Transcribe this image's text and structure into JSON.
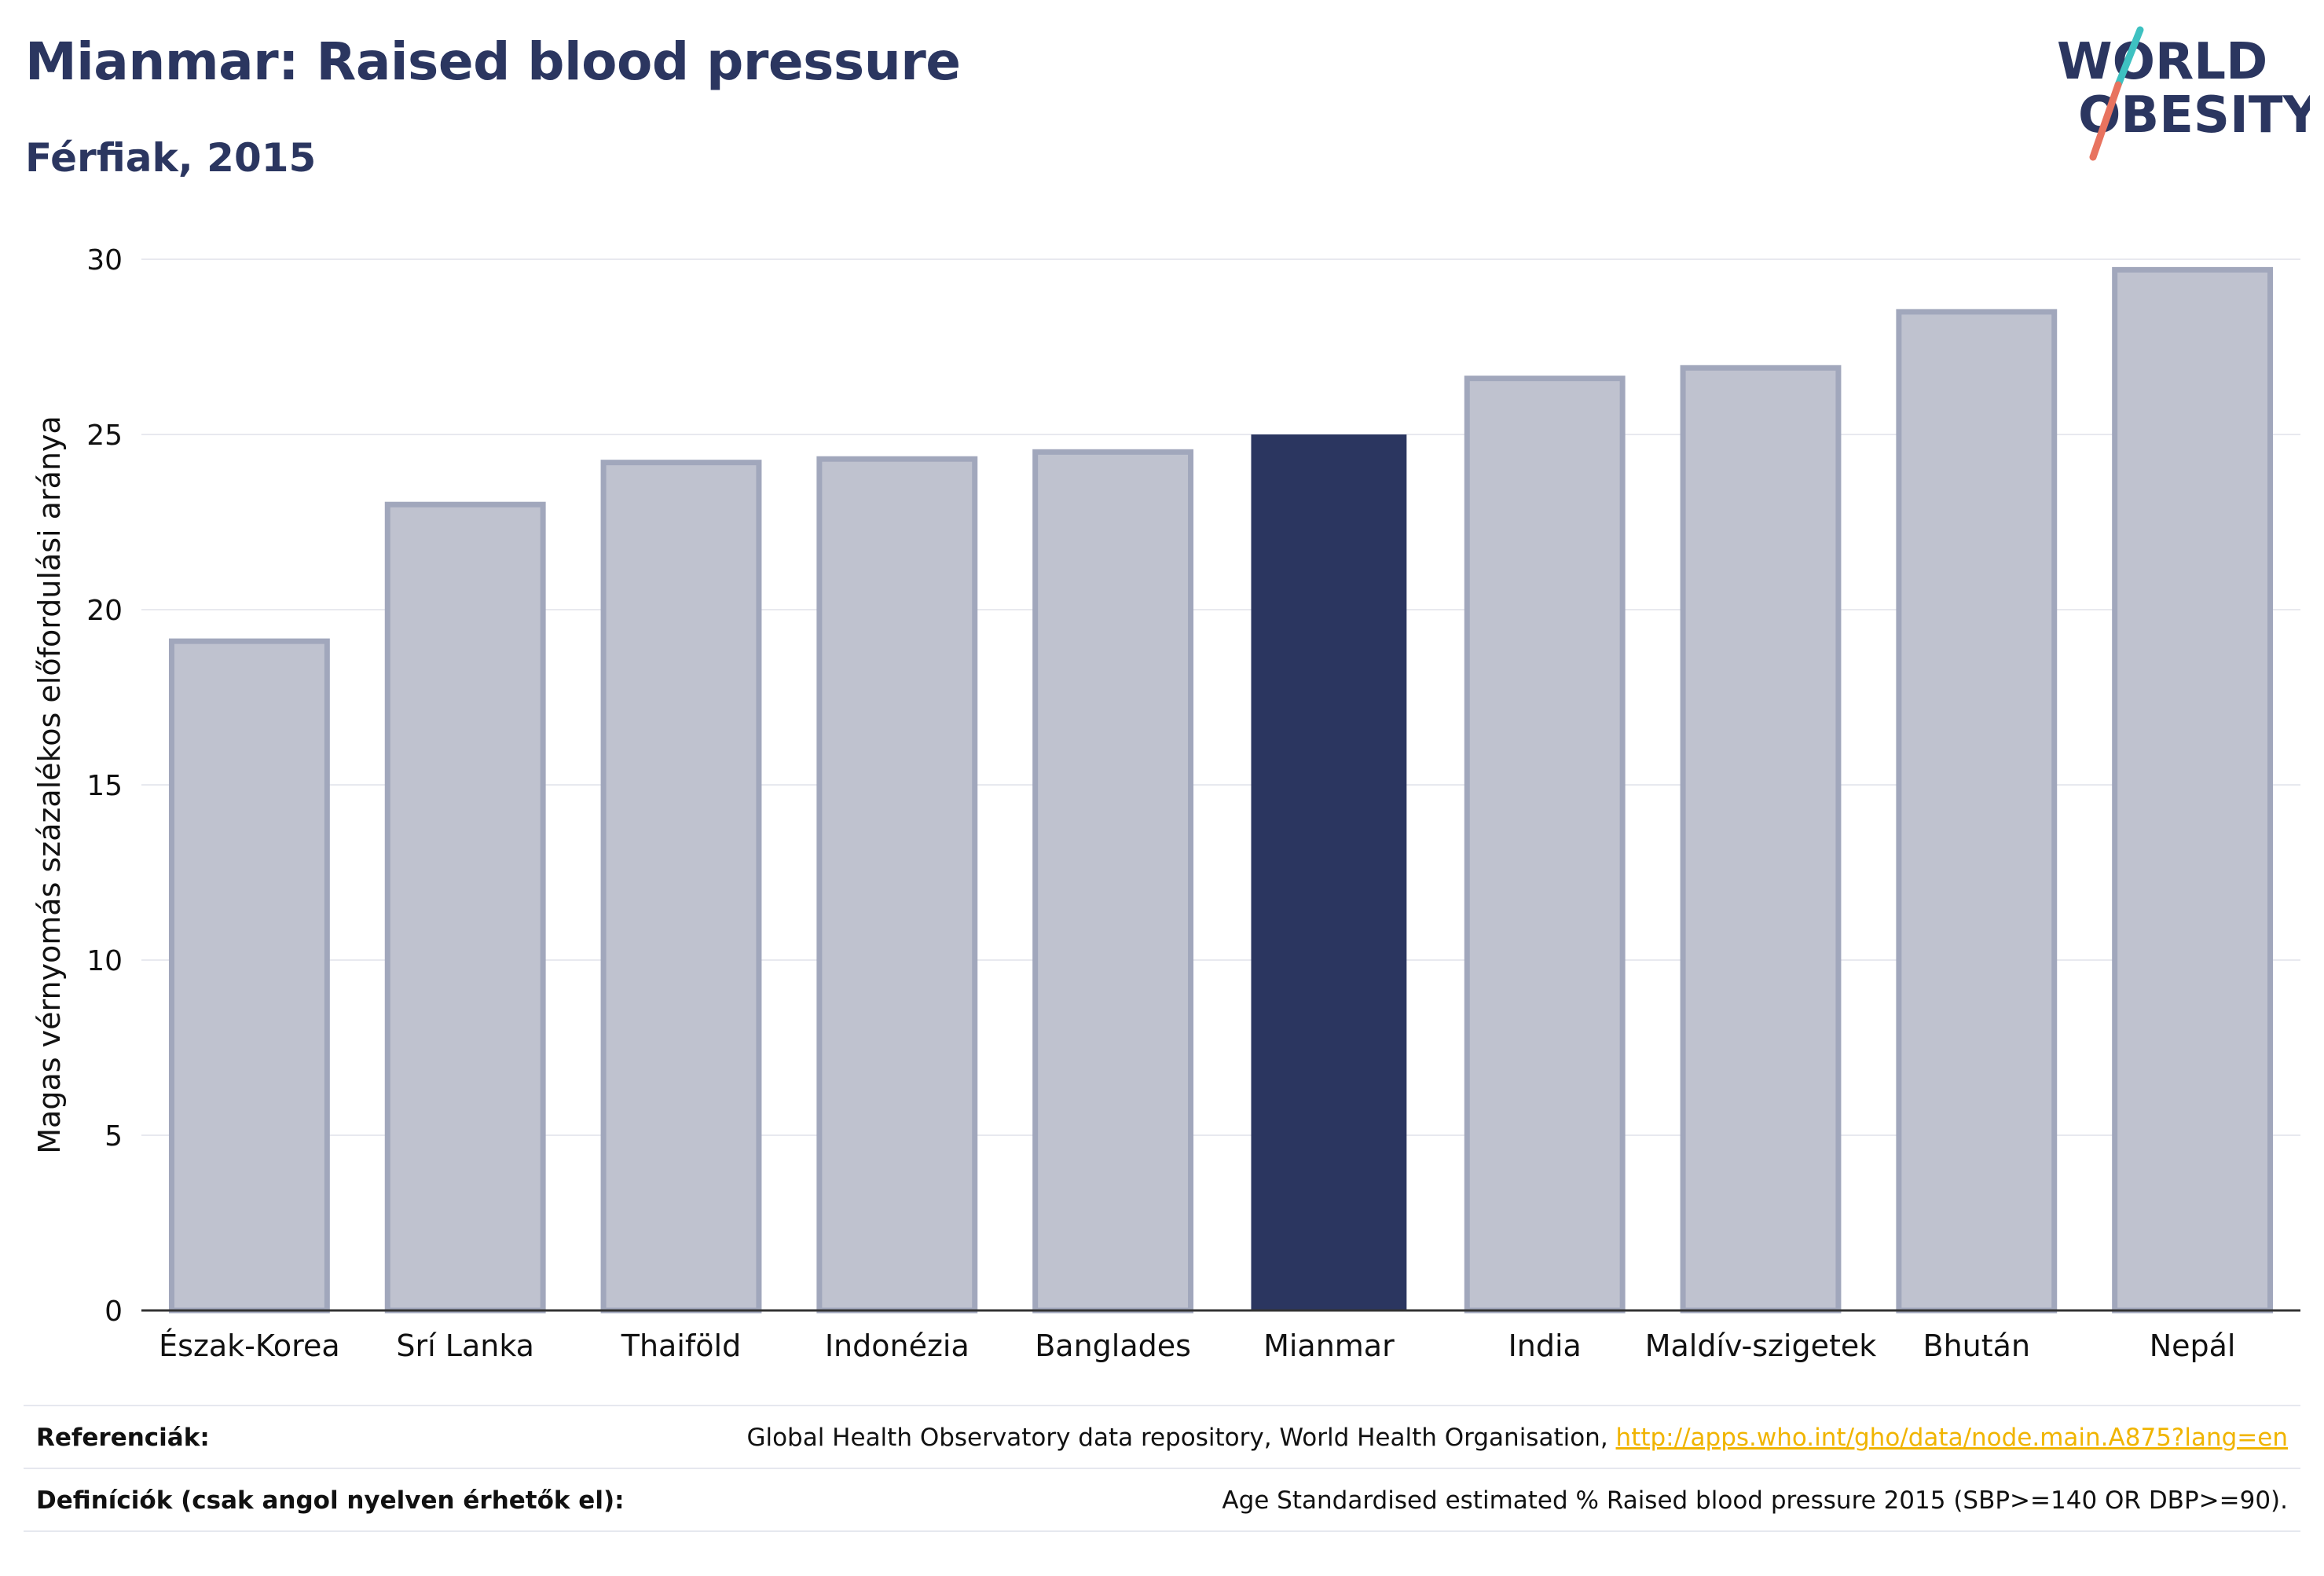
{
  "header": {
    "title": "Mianmar: Raised blood pressure",
    "subtitle": "Férfiak, 2015"
  },
  "logo": {
    "line1": "WORLD",
    "line2": "OBESITY",
    "slash_colors": [
      "#3ec1c1",
      "#e8735f"
    ]
  },
  "chart_data": {
    "type": "bar",
    "ylabel": "Magas vérnyomás százalékos előfordulási aránya",
    "ylim": [
      0,
      30
    ],
    "yticks": [
      0,
      5,
      10,
      15,
      20,
      25,
      30
    ],
    "categories": [
      "Észak-Korea",
      "Srí Lanka",
      "Thaiföld",
      "Indonézia",
      "Banglades",
      "Mianmar",
      "India",
      "Maldív-szigetek",
      "Bhután",
      "Nepál"
    ],
    "values": [
      19.1,
      23.0,
      24.2,
      24.3,
      24.5,
      25.0,
      26.6,
      26.9,
      28.5,
      29.7
    ],
    "highlight": "Mianmar",
    "colors": {
      "bar": "#bfc2cf",
      "bar_border": "#a1a7bc",
      "highlight": "#2b3660",
      "grid": "#e8e9ef",
      "axis": "#333333"
    },
    "grid": true
  },
  "footer": {
    "references_label": "Referenciák:",
    "references_text": "Global Health Observatory data repository, World Health Organisation, ",
    "references_link": "http://apps.who.int/gho/data/node.main.A875?lang=en",
    "definitions_label": "Definíciók (csak angol nyelven érhetők el):",
    "definitions_text": "Age Standardised estimated % Raised blood pressure 2015 (SBP>=140 OR DBP>=90)."
  }
}
